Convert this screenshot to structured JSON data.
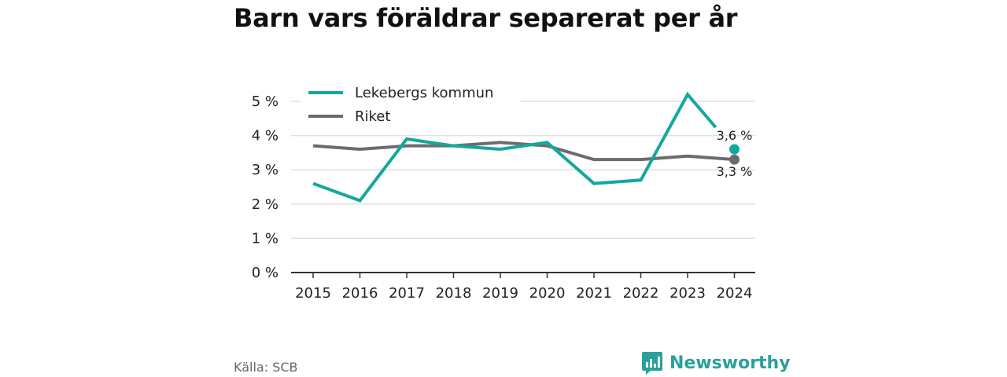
{
  "title": "Barn vars föräldrar separerat per år",
  "source": "Källa: SCB",
  "brand": {
    "name": "Newsworthy",
    "logo_icon": "newsworthy-logo-icon"
  },
  "colors": {
    "lekeberg": "#13a89e",
    "riket": "#6d6b72",
    "grid": "#e1e1e1",
    "axis": "#333333"
  },
  "chart_data": {
    "type": "line",
    "title": "Barn vars föräldrar separerat per år",
    "x": [
      "2015",
      "2016",
      "2017",
      "2018",
      "2019",
      "2020",
      "2021",
      "2022",
      "2023",
      "2024"
    ],
    "ylim": [
      0,
      5
    ],
    "yticks": [
      0,
      1,
      2,
      3,
      4,
      5
    ],
    "ytick_labels": [
      "0 %",
      "1 %",
      "2 %",
      "3 %",
      "4 %",
      "5 %"
    ],
    "grid": true,
    "legend": "top-left",
    "series": [
      {
        "name": "Lekebergs kommun",
        "color": "#13a89e",
        "values": [
          2.6,
          2.1,
          3.9,
          3.7,
          3.6,
          3.8,
          2.6,
          2.7,
          5.2,
          3.6
        ],
        "end_label": "3,6 %"
      },
      {
        "name": "Riket",
        "color": "#6d6b72",
        "values": [
          3.7,
          3.6,
          3.7,
          3.7,
          3.8,
          3.7,
          3.3,
          3.3,
          3.4,
          3.3
        ],
        "end_label": "3,3 %"
      }
    ]
  }
}
